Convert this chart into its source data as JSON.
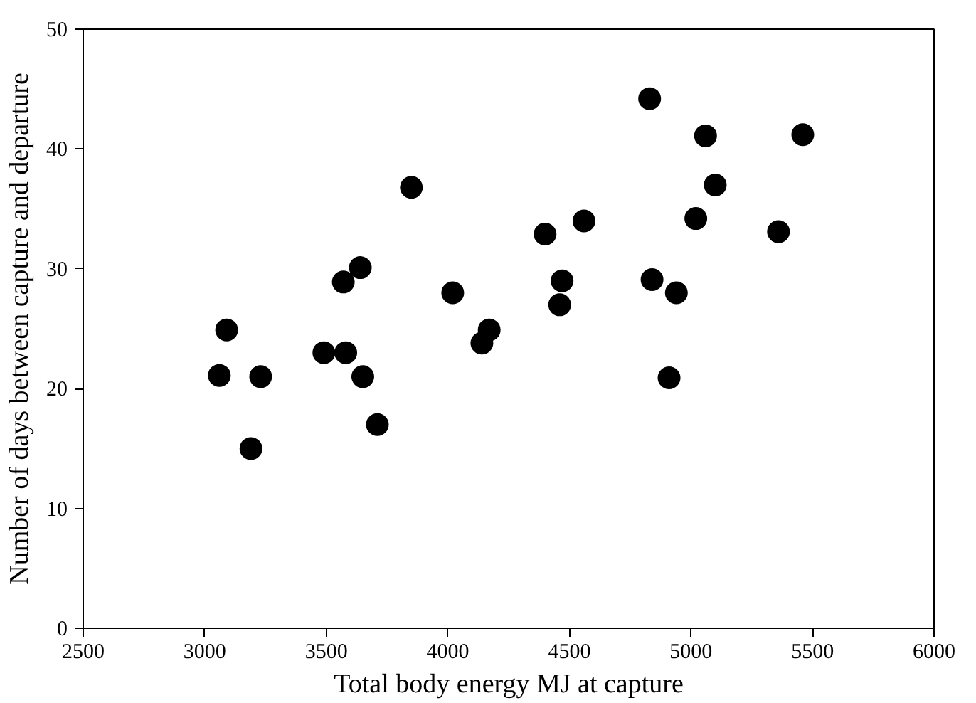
{
  "chart_data": {
    "type": "scatter",
    "xlabel": "Total body energy MJ at capture",
    "ylabel": "Number of days between capture and departure",
    "x": [
      3060,
      3090,
      3190,
      3230,
      3490,
      3570,
      3580,
      3640,
      3650,
      3710,
      3850,
      4020,
      4140,
      4170,
      4400,
      4460,
      4470,
      4560,
      4830,
      4840,
      4910,
      4940,
      5020,
      5060,
      5100,
      5360,
      5460
    ],
    "series": [
      {
        "color": "#000000",
        "values": [
          21.1,
          24.9,
          15,
          21,
          23,
          28.9,
          23,
          30.1,
          21,
          17,
          36.8,
          28,
          23.8,
          24.9,
          32.9,
          27,
          29,
          34,
          44.2,
          29.1,
          20.9,
          28,
          34.2,
          41.1,
          37,
          33.1,
          41.2
        ]
      }
    ],
    "xlim": [
      2500,
      6000
    ],
    "ylim": [
      0,
      50
    ],
    "xticks": [
      2500,
      3000,
      3500,
      4000,
      4500,
      5000,
      5500,
      6000
    ],
    "yticks": [
      0,
      10,
      20,
      30,
      40,
      50
    ],
    "marker": "circle",
    "grid": false
  }
}
